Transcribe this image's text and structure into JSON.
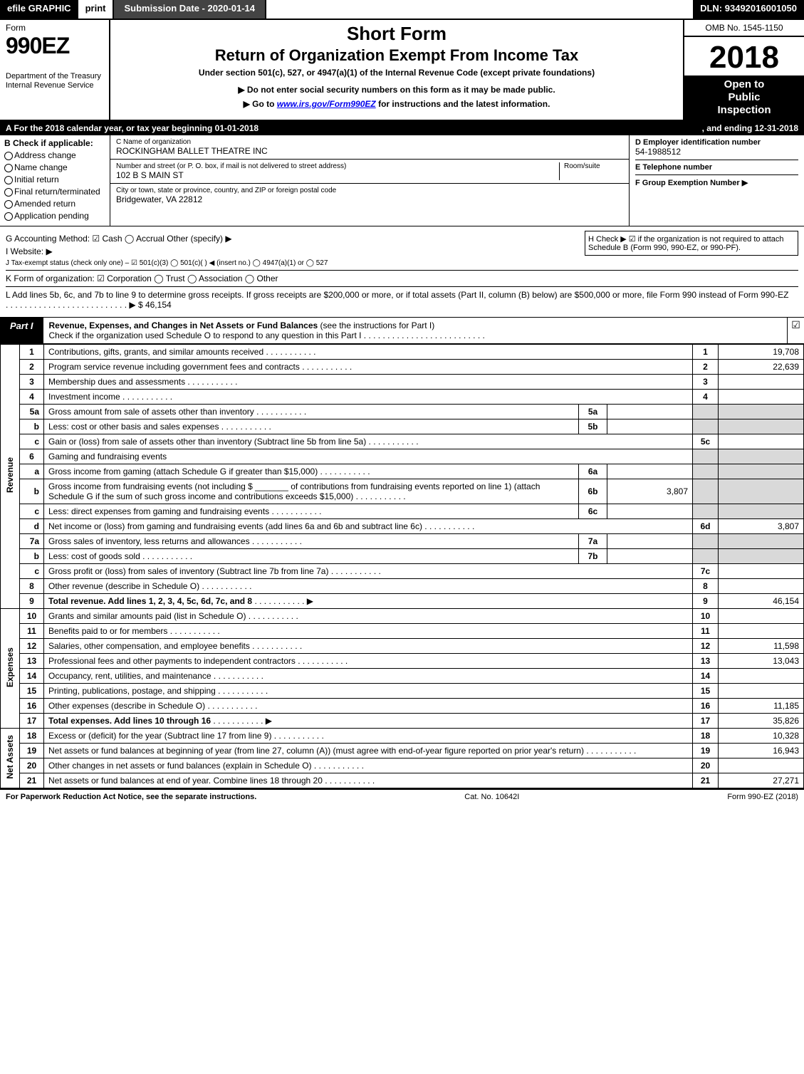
{
  "topbar": {
    "efile": "efile GRAPHIC",
    "print": "print",
    "subdate_label": "Submission Date - ",
    "subdate": "2020-01-14",
    "dln_label": "DLN: ",
    "dln": "93492016001050"
  },
  "header": {
    "form_label": "Form",
    "form_number": "990EZ",
    "dept1": "Department of the Treasury",
    "dept2": "Internal Revenue Service",
    "short_form": "Short Form",
    "return_title": "Return of Organization Exempt From Income Tax",
    "under_section": "Under section 501(c), 527, or 4947(a)(1) of the Internal Revenue Code (except private foundations)",
    "notice1_pre": "▶ Do not enter social security numbers on this form as it may be made public.",
    "notice2_pre": "▶ Go to ",
    "notice2_link": "www.irs.gov/Form990EZ",
    "notice2_post": " for instructions and the latest information.",
    "omb": "OMB No. 1545-1150",
    "year": "2018",
    "open1": "Open to",
    "open2": "Public",
    "open3": "Inspection"
  },
  "rowA": {
    "left_pre": "A  For the 2018 calendar year, or tax year beginning ",
    "begin": "01-01-2018",
    "mid": ", and ending ",
    "end": "12-31-2018"
  },
  "colB": {
    "title": "B  Check if applicable:",
    "addr_change": "Address change",
    "name_change": "Name change",
    "initial": "Initial return",
    "final": "Final return/terminated",
    "amended": "Amended return",
    "pending": "Application pending"
  },
  "colC": {
    "name_lbl": "C Name of organization",
    "name": "ROCKINGHAM BALLET THEATRE INC",
    "street_lbl": "Number and street (or P. O. box, if mail is not delivered to street address)",
    "room_lbl": "Room/suite",
    "street": "102 B S MAIN ST",
    "city_lbl": "City or town, state or province, country, and ZIP or foreign postal code",
    "city": "Bridgewater, VA  22812"
  },
  "colD": {
    "ein_lbl": "D Employer identification number",
    "ein": "54-1988512",
    "tel_lbl": "E Telephone number",
    "tel": "",
    "group_lbl": "F Group Exemption Number  ▶",
    "group": ""
  },
  "meta": {
    "G": "G Accounting Method:   ☑ Cash   ◯ Accrual   Other (specify) ▶",
    "H": "H  Check ▶ ☑ if the organization is not required to attach Schedule B (Form 990, 990-EZ, or 990-PF).",
    "I": "I Website: ▶",
    "J": "J Tax-exempt status (check only one) – ☑ 501(c)(3)  ◯ 501(c)(  ) ◀ (insert no.)  ◯ 4947(a)(1) or  ◯ 527",
    "K": "K Form of organization:   ☑ Corporation   ◯ Trust   ◯ Association   ◯ Other",
    "L": "L Add lines 5b, 6c, and 7b to line 9 to determine gross receipts. If gross receipts are $200,000 or more, or if total assets (Part II, column (B) below) are $500,000 or more, file Form 990 instead of Form 990-EZ",
    "L_val": "▶ $ 46,154"
  },
  "part1": {
    "tag": "Part I",
    "title": "Revenue, Expenses, and Changes in Net Assets or Fund Balances",
    "sub": " (see the instructions for Part I)",
    "check_line": "Check if the organization used Schedule O to respond to any question in this Part I",
    "checkmark": "☑"
  },
  "groups": {
    "revenue": "Revenue",
    "expenses": "Expenses",
    "netassets": "Net Assets"
  },
  "rows": [
    {
      "n": "1",
      "d": "Contributions, gifts, grants, and similar amounts received",
      "r": "1",
      "v": "19,708"
    },
    {
      "n": "2",
      "d": "Program service revenue including government fees and contracts",
      "r": "2",
      "v": "22,639"
    },
    {
      "n": "3",
      "d": "Membership dues and assessments",
      "r": "3",
      "v": ""
    },
    {
      "n": "4",
      "d": "Investment income",
      "r": "4",
      "v": ""
    },
    {
      "n": "5a",
      "d": "Gross amount from sale of assets other than inventory",
      "mn": "5a",
      "mv": ""
    },
    {
      "n": "b",
      "d": "Less: cost or other basis and sales expenses",
      "mn": "5b",
      "mv": ""
    },
    {
      "n": "c",
      "d": "Gain or (loss) from sale of assets other than inventory (Subtract line 5b from line 5a)",
      "r": "5c",
      "v": ""
    },
    {
      "n": "6",
      "d": "Gaming and fundraising events"
    },
    {
      "n": "a",
      "d": "Gross income from gaming (attach Schedule G if greater than $15,000)",
      "mn": "6a",
      "mv": ""
    },
    {
      "n": "b",
      "d": "Gross income from fundraising events (not including $ _______ of contributions from fundraising events reported on line 1) (attach Schedule G if the sum of such gross income and contributions exceeds $15,000)",
      "mn": "6b",
      "mv": "3,807"
    },
    {
      "n": "c",
      "d": "Less: direct expenses from gaming and fundraising events",
      "mn": "6c",
      "mv": ""
    },
    {
      "n": "d",
      "d": "Net income or (loss) from gaming and fundraising events (add lines 6a and 6b and subtract line 6c)",
      "r": "6d",
      "v": "3,807"
    },
    {
      "n": "7a",
      "d": "Gross sales of inventory, less returns and allowances",
      "mn": "7a",
      "mv": ""
    },
    {
      "n": "b",
      "d": "Less: cost of goods sold",
      "mn": "7b",
      "mv": ""
    },
    {
      "n": "c",
      "d": "Gross profit or (loss) from sales of inventory (Subtract line 7b from line 7a)",
      "r": "7c",
      "v": ""
    },
    {
      "n": "8",
      "d": "Other revenue (describe in Schedule O)",
      "r": "8",
      "v": ""
    },
    {
      "n": "9",
      "d": "Total revenue. Add lines 1, 2, 3, 4, 5c, 6d, 7c, and 8",
      "r": "9",
      "v": "46,154",
      "bold": true,
      "arrow": true
    },
    {
      "n": "10",
      "d": "Grants and similar amounts paid (list in Schedule O)",
      "r": "10",
      "v": ""
    },
    {
      "n": "11",
      "d": "Benefits paid to or for members",
      "r": "11",
      "v": ""
    },
    {
      "n": "12",
      "d": "Salaries, other compensation, and employee benefits",
      "r": "12",
      "v": "11,598"
    },
    {
      "n": "13",
      "d": "Professional fees and other payments to independent contractors",
      "r": "13",
      "v": "13,043"
    },
    {
      "n": "14",
      "d": "Occupancy, rent, utilities, and maintenance",
      "r": "14",
      "v": ""
    },
    {
      "n": "15",
      "d": "Printing, publications, postage, and shipping",
      "r": "15",
      "v": ""
    },
    {
      "n": "16",
      "d": "Other expenses (describe in Schedule O)",
      "r": "16",
      "v": "11,185"
    },
    {
      "n": "17",
      "d": "Total expenses. Add lines 10 through 16",
      "r": "17",
      "v": "35,826",
      "bold": true,
      "arrow": true
    },
    {
      "n": "18",
      "d": "Excess or (deficit) for the year (Subtract line 17 from line 9)",
      "r": "18",
      "v": "10,328"
    },
    {
      "n": "19",
      "d": "Net assets or fund balances at beginning of year (from line 27, column (A)) (must agree with end-of-year figure reported on prior year's return)",
      "r": "19",
      "v": "16,943"
    },
    {
      "n": "20",
      "d": "Other changes in net assets or fund balances (explain in Schedule O)",
      "r": "20",
      "v": ""
    },
    {
      "n": "21",
      "d": "Net assets or fund balances at end of year. Combine lines 18 through 20",
      "r": "21",
      "v": "27,271"
    }
  ],
  "footer": {
    "left": "For Paperwork Reduction Act Notice, see the separate instructions.",
    "mid": "Cat. No. 10642I",
    "right": "Form 990-EZ (2018)"
  }
}
